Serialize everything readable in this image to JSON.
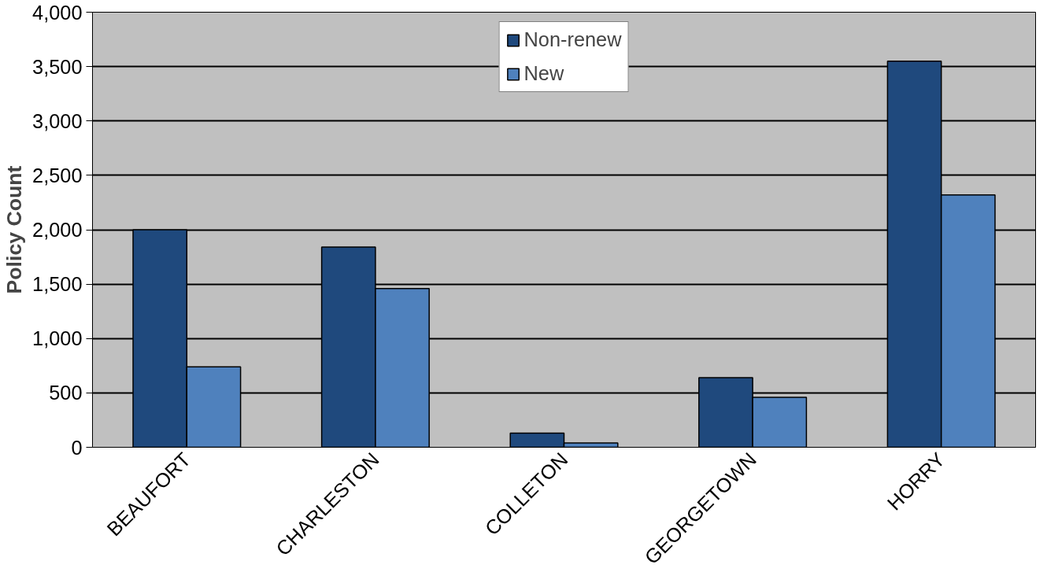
{
  "chart_data": {
    "type": "bar",
    "ylabel": "Policy Count",
    "categories": [
      "BEAUFORT",
      "CHARLESTON",
      "COLLETON",
      "GEORGETOWN",
      "HORRY"
    ],
    "series": [
      {
        "name": "Non-renew",
        "color": "#1f497d",
        "values": [
          2000,
          1840,
          130,
          640,
          3550
        ]
      },
      {
        "name": "New",
        "color": "#4f81bd",
        "values": [
          740,
          1460,
          40,
          460,
          2320
        ]
      }
    ],
    "ylim": [
      0,
      4000
    ],
    "yticks": [
      {
        "value": 0,
        "label": "0"
      },
      {
        "value": 500,
        "label": "500"
      },
      {
        "value": 1000,
        "label": "1,000"
      },
      {
        "value": 1500,
        "label": "1,500"
      },
      {
        "value": 2000,
        "label": "2,000"
      },
      {
        "value": 2500,
        "label": "2,500"
      },
      {
        "value": 3000,
        "label": "3,000"
      },
      {
        "value": 3500,
        "label": "3,500"
      },
      {
        "value": 4000,
        "label": "4,000"
      }
    ],
    "grid": "y",
    "legend": "top"
  }
}
